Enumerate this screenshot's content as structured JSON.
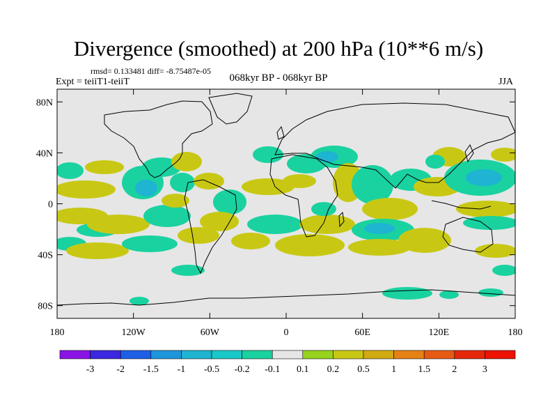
{
  "map": {
    "title": "Divergence (smoothed) at 200 hPa (10**6 m/s)",
    "stats": "rmsd= 0.133481 diff= -8.75487e-05",
    "experiment": "Expt = teiiT1-teiiT",
    "period": "068kyr BP - 068kyr BP",
    "season": "JJA",
    "projection": "cylindrical equidistant",
    "lon_range": [
      -180,
      180
    ],
    "lat_range": [
      -90,
      90
    ],
    "background_color": "#e6e6e6",
    "y_ticks": [
      "80N",
      "40N",
      "0",
      "40S",
      "80S"
    ],
    "x_ticks": [
      "180",
      "120W",
      "60W",
      "0",
      "60E",
      "120E",
      "180"
    ]
  },
  "legend": {
    "labels": [
      "-3",
      "-2",
      "-1.5",
      "-1",
      "-0.5",
      "-0.2",
      "-0.1",
      "0.1",
      "0.2",
      "0.5",
      "1",
      "1.5",
      "2",
      "3"
    ],
    "colors": [
      "#8a14e6",
      "#3c28e0",
      "#1e5fe6",
      "#1e96dc",
      "#1eb4d2",
      "#19c8c8",
      "#19d2a0",
      "#e6e6e6",
      "#96d21e",
      "#c8c814",
      "#d2aa14",
      "#e68214",
      "#e65a14",
      "#e6280a",
      "#ee1200"
    ]
  },
  "field_colors": {
    "positive": "#c8c814",
    "positive_strong": "#d2aa14",
    "negative": "#19d2a0",
    "negative_strong": "#1eb4d2",
    "negative_stronger": "#1e96dc"
  }
}
